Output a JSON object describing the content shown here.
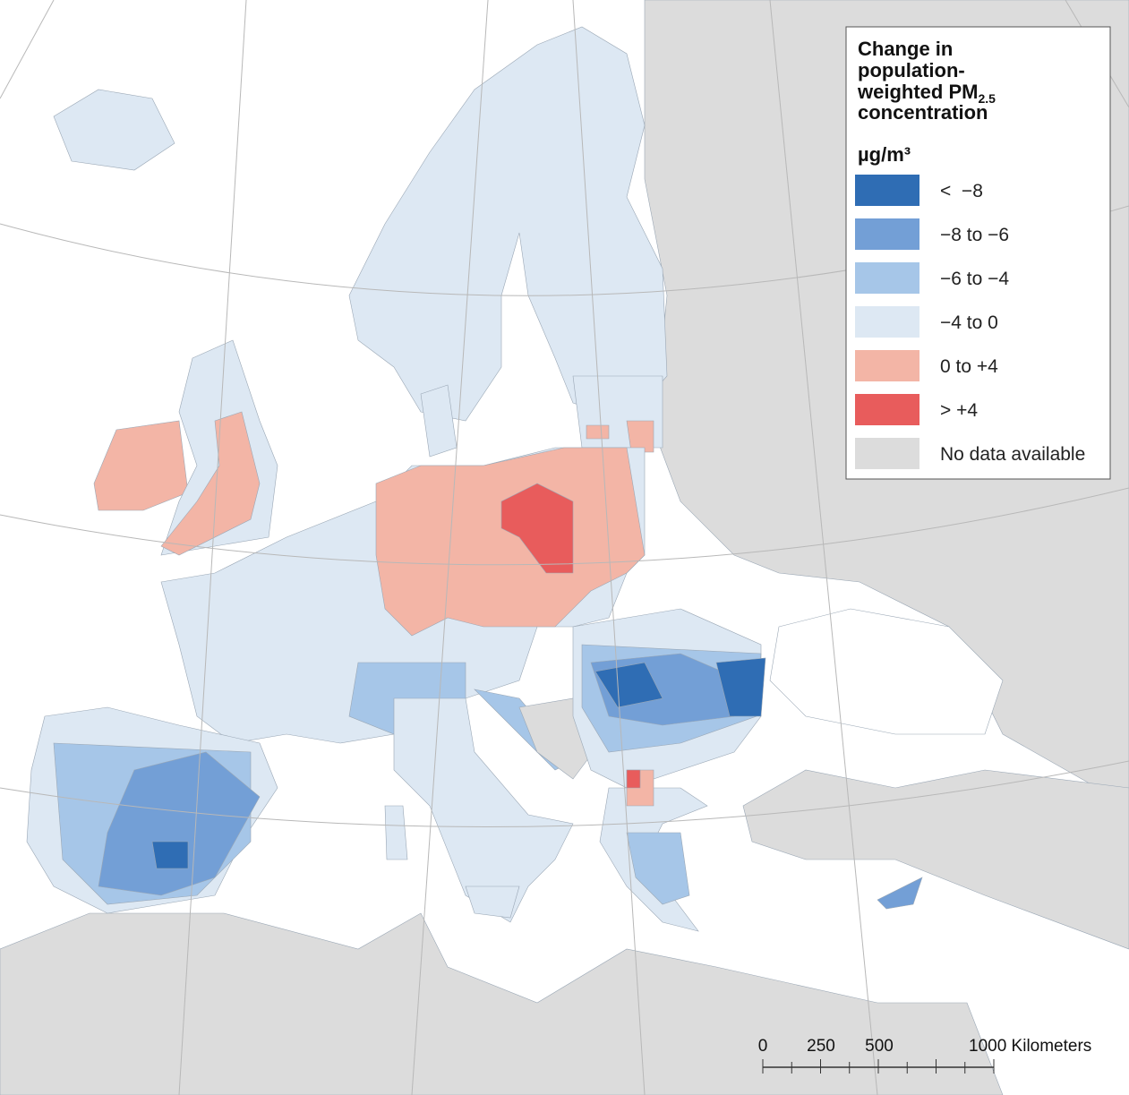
{
  "legend": {
    "title_lines": [
      "Change in",
      "population-",
      "weighted PM",
      "concentration"
    ],
    "title_subscript": "2.5",
    "unit": "µg/m³",
    "items": [
      {
        "label": "<  −8",
        "color": "#2f6db4"
      },
      {
        "label": "−8 to −6",
        "color": "#739fd6"
      },
      {
        "label": "−6 to −4",
        "color": "#a6c6e8"
      },
      {
        "label": "−4 to 0",
        "color": "#dde8f3"
      },
      {
        "label": "0 to +4",
        "color": "#f3b5a6"
      },
      {
        "label": "> +4",
        "color": "#e85c5c"
      },
      {
        "label": "No data available",
        "color": "#dcdcdc"
      }
    ]
  },
  "scale_bar": {
    "labels": [
      "0",
      "250",
      "500",
      "1000 Kilometers"
    ]
  }
}
